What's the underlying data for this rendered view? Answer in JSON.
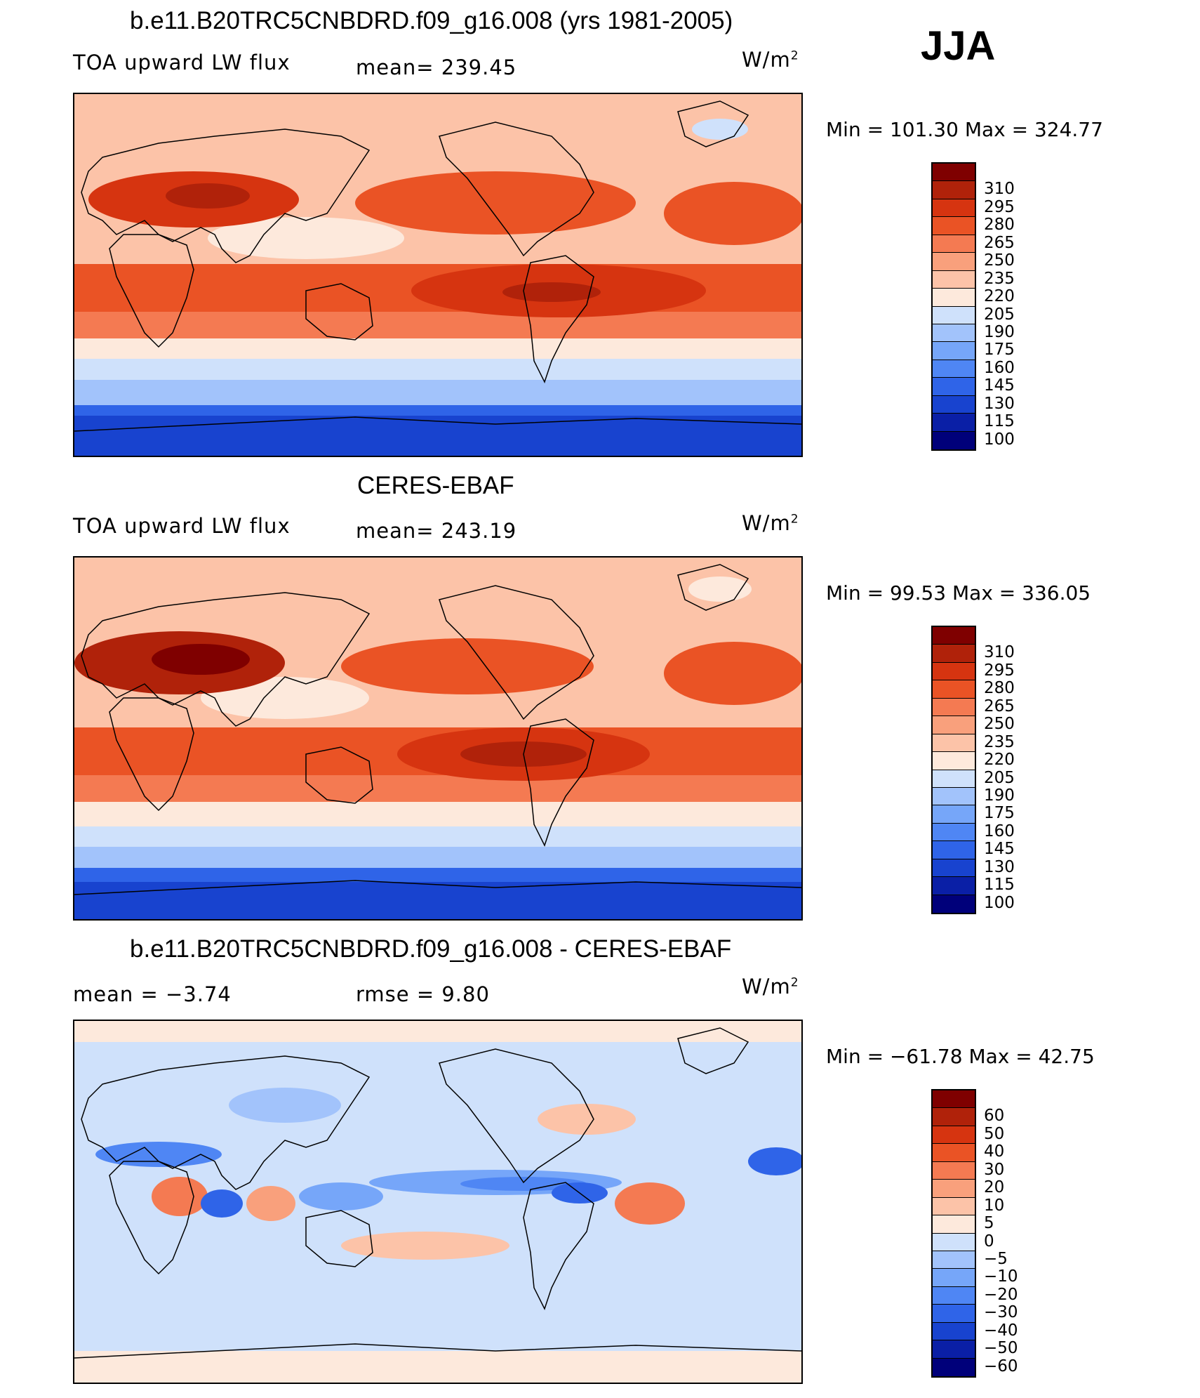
{
  "season": "JJA",
  "panels": [
    {
      "title": "b.e11.B20TRC5CNBDRD.f09_g16.008 (yrs 1981-2005)",
      "left_label": "TOA upward LW flux",
      "center_label": "mean=  239.45",
      "units": "W/m",
      "units_exp": "2",
      "minmax": "Min  =  101.30  Max  =  324.77"
    },
    {
      "title": "CERES-EBAF",
      "left_label": "TOA upward LW flux",
      "center_label": "mean=  243.19",
      "units": "W/m",
      "units_exp": "2",
      "minmax": "Min  =   99.53  Max  =  336.05"
    },
    {
      "title": "b.e11.B20TRC5CNBDRD.f09_g16.008 - CERES-EBAF",
      "left_label": "mean  =    −3.74",
      "center_label": "rmse  =     9.80",
      "units": "W/m",
      "units_exp": "2",
      "minmax": "Min  =  −61.78  Max  =    42.75"
    }
  ],
  "colors": {
    "flux": [
      "#00007a",
      "#0a1fa6",
      "#1843cf",
      "#2f64e8",
      "#4f86f4",
      "#76a6f9",
      "#a2c3fb",
      "#cfe1fb",
      "#fde9dc",
      "#fcc3a8",
      "#f9a07c",
      "#f47a52",
      "#ea5325",
      "#d63410",
      "#b0220a",
      "#7f0000"
    ],
    "diff": [
      "#00007a",
      "#0a1fa6",
      "#1843cf",
      "#2f64e8",
      "#4f86f4",
      "#76a6f9",
      "#a2c3fb",
      "#cfe1fb",
      "#fde9dc",
      "#fcc3a8",
      "#f9a07c",
      "#f47a52",
      "#ea5325",
      "#d63410",
      "#b0220a",
      "#7f0000"
    ]
  },
  "chart_data": [
    {
      "type": "heatmap",
      "title": "b.e11.B20TRC5CNBDRD.f09_g16.008 (yrs 1981-2005)",
      "variable": "TOA upward LW flux",
      "units": "W/m2",
      "mean": 239.45,
      "min": 101.3,
      "max": 324.77,
      "levels": [
        100,
        115,
        130,
        145,
        160,
        175,
        190,
        205,
        220,
        235,
        250,
        265,
        280,
        295,
        310
      ],
      "latitudinal_profile_approx": [
        {
          "lat": -90,
          "value": 110
        },
        {
          "lat": -75,
          "value": 125
        },
        {
          "lat": -60,
          "value": 185
        },
        {
          "lat": -45,
          "value": 215
        },
        {
          "lat": -30,
          "value": 255
        },
        {
          "lat": -15,
          "value": 280
        },
        {
          "lat": 0,
          "value": 250
        },
        {
          "lat": 15,
          "value": 255
        },
        {
          "lat": 30,
          "value": 275
        },
        {
          "lat": 45,
          "value": 255
        },
        {
          "lat": 60,
          "value": 235
        },
        {
          "lat": 75,
          "value": 225
        },
        {
          "lat": 90,
          "value": 220
        }
      ]
    },
    {
      "type": "heatmap",
      "title": "CERES-EBAF",
      "variable": "TOA upward LW flux",
      "units": "W/m2",
      "mean": 243.19,
      "min": 99.53,
      "max": 336.05,
      "levels": [
        100,
        115,
        130,
        145,
        160,
        175,
        190,
        205,
        220,
        235,
        250,
        265,
        280,
        295,
        310
      ],
      "latitudinal_profile_approx": [
        {
          "lat": -90,
          "value": 105
        },
        {
          "lat": -75,
          "value": 120
        },
        {
          "lat": -60,
          "value": 190
        },
        {
          "lat": -45,
          "value": 220
        },
        {
          "lat": -30,
          "value": 262
        },
        {
          "lat": -15,
          "value": 285
        },
        {
          "lat": 0,
          "value": 255
        },
        {
          "lat": 15,
          "value": 262
        },
        {
          "lat": 30,
          "value": 285
        },
        {
          "lat": 45,
          "value": 258
        },
        {
          "lat": 60,
          "value": 240
        },
        {
          "lat": 75,
          "value": 228
        },
        {
          "lat": 90,
          "value": 225
        }
      ]
    },
    {
      "type": "heatmap",
      "title": "b.e11.B20TRC5CNBDRD.f09_g16.008 - CERES-EBAF",
      "variable": "difference",
      "units": "W/m2",
      "mean": -3.74,
      "rmse": 9.8,
      "min": -61.78,
      "max": 42.75,
      "levels": [
        -60,
        -50,
        -40,
        -30,
        -20,
        -10,
        -5,
        0,
        5,
        10,
        20,
        30,
        40,
        50,
        60
      ],
      "level_labels": [
        "−60",
        "−50",
        "−40",
        "−30",
        "−20",
        "−10",
        "−5",
        "0",
        "5",
        "10",
        "20",
        "30",
        "40",
        "50",
        "60"
      ],
      "latitudinal_profile_approx": [
        {
          "lat": -90,
          "value": 3
        },
        {
          "lat": -75,
          "value": 2
        },
        {
          "lat": -60,
          "value": -4
        },
        {
          "lat": -45,
          "value": -3
        },
        {
          "lat": -30,
          "value": -5
        },
        {
          "lat": -15,
          "value": -3
        },
        {
          "lat": 0,
          "value": -10
        },
        {
          "lat": 15,
          "value": -6
        },
        {
          "lat": 30,
          "value": -8
        },
        {
          "lat": 45,
          "value": -4
        },
        {
          "lat": 60,
          "value": -5
        },
        {
          "lat": 75,
          "value": -2
        },
        {
          "lat": 90,
          "value": 2
        }
      ]
    }
  ]
}
